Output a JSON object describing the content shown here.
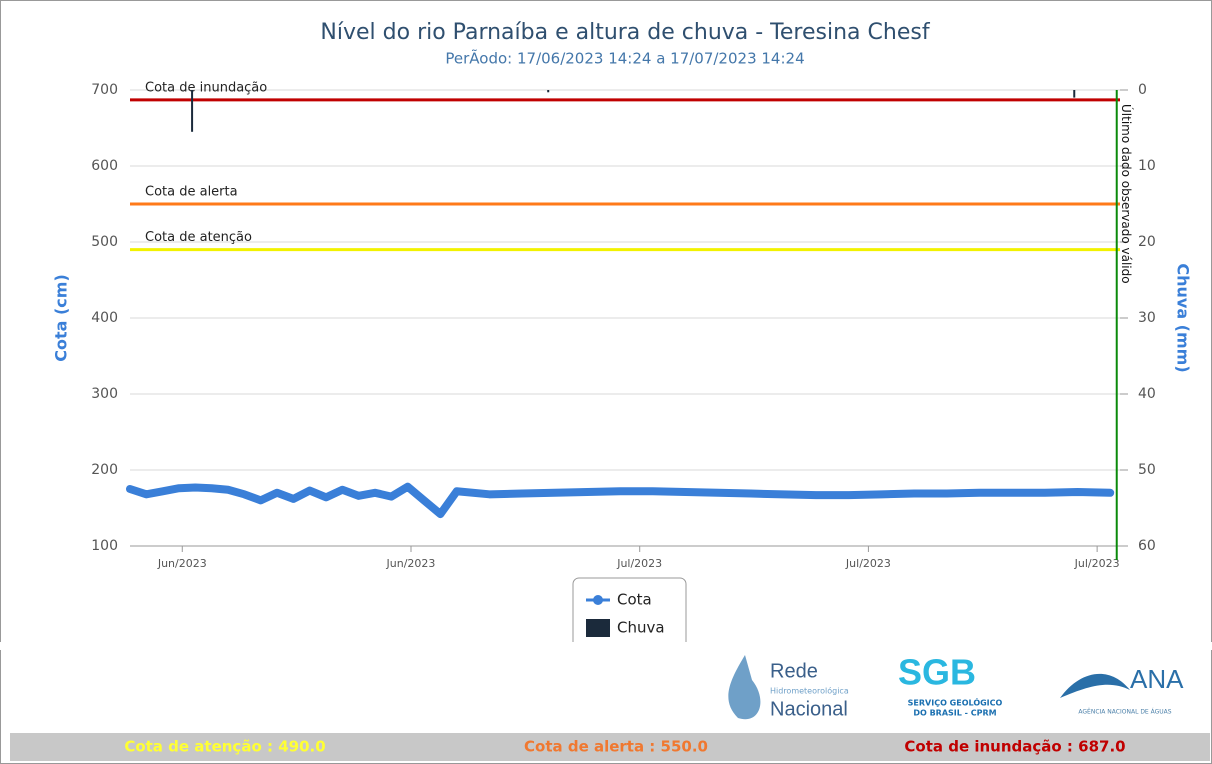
{
  "chart_data": {
    "type": "line",
    "title": "Nível do rio Parnaíba e altura de chuva - Teresina Chesf",
    "subtitle": "PerÃodo: 17/06/2023 14:24 a 17/07/2023 14:24",
    "ylabel": "Cota (cm)",
    "y2label": "Chuva (mm)",
    "ylim": [
      100,
      700
    ],
    "yticks": [
      100,
      200,
      300,
      400,
      500,
      600,
      700
    ],
    "y2lim": [
      0,
      60
    ],
    "y2_reversed": true,
    "y2ticks": [
      0,
      10,
      20,
      30,
      40,
      50,
      60
    ],
    "xlim": [
      0,
      30.3
    ],
    "xticks": [
      {
        "value": 1.6,
        "label": "Jun/2023"
      },
      {
        "value": 8.6,
        "label": "Jun/2023"
      },
      {
        "value": 15.6,
        "label": "Jul/2023"
      },
      {
        "value": 22.6,
        "label": "Jul/2023"
      },
      {
        "value": 29.6,
        "label": "Jul/2023"
      }
    ],
    "grid": true,
    "series": [
      {
        "name": "Cota",
        "color": "#3a7fd8",
        "x": [
          0,
          0.5,
          1,
          1.5,
          2,
          2.5,
          3,
          3.5,
          4,
          4.5,
          5,
          5.5,
          6,
          6.5,
          7,
          7.5,
          8,
          8.5,
          9,
          9.5,
          10,
          11,
          12,
          13,
          14,
          15,
          16,
          17,
          18,
          19,
          20,
          21,
          22,
          23,
          24,
          25,
          26,
          27,
          28,
          29,
          30
        ],
        "values": [
          175,
          168,
          172,
          176,
          177,
          176,
          174,
          168,
          160,
          170,
          162,
          173,
          164,
          174,
          166,
          170,
          165,
          178,
          160,
          142,
          172,
          168,
          169,
          170,
          171,
          172,
          172,
          171,
          170,
          169,
          168,
          167,
          167,
          168,
          169,
          169,
          170,
          170,
          170,
          171,
          170
        ]
      },
      {
        "name": "Chuva",
        "color": "#1b2a3b",
        "type": "bar",
        "axis": "y2",
        "x": [
          1.9,
          12.8,
          28.9
        ],
        "values": [
          5.5,
          0.3,
          1
        ]
      }
    ],
    "thresholds": [
      {
        "name": "Cota de inundação",
        "value": 687,
        "color": "#c00000"
      },
      {
        "name": "Cota de alerta",
        "value": 550,
        "color": "#ff7a1a"
      },
      {
        "name": "Cota de atenção",
        "value": 490,
        "color": "#f2f200"
      }
    ],
    "last_valid": {
      "label": "Último dado observado válido",
      "x": 30.2,
      "color": "#0a8a0a"
    }
  },
  "logos": {
    "rede": [
      "Rede",
      "Hidrometeorológica",
      "Nacional"
    ],
    "sgb": [
      "SGB",
      "SERVIÇO GEOLÓGICO",
      "DO BRASIL - CPRM"
    ],
    "ana": [
      "ANA",
      "AGÊNCIA NACIONAL DE ÁGUAS"
    ]
  },
  "footer": [
    {
      "text": "Cota de atenção : 490.0",
      "color": "#ffff33"
    },
    {
      "text": "Cota de alerta : 550.0",
      "color": "#f07830"
    },
    {
      "text": "Cota de inundação : 687.0",
      "color": "#c00000"
    }
  ]
}
